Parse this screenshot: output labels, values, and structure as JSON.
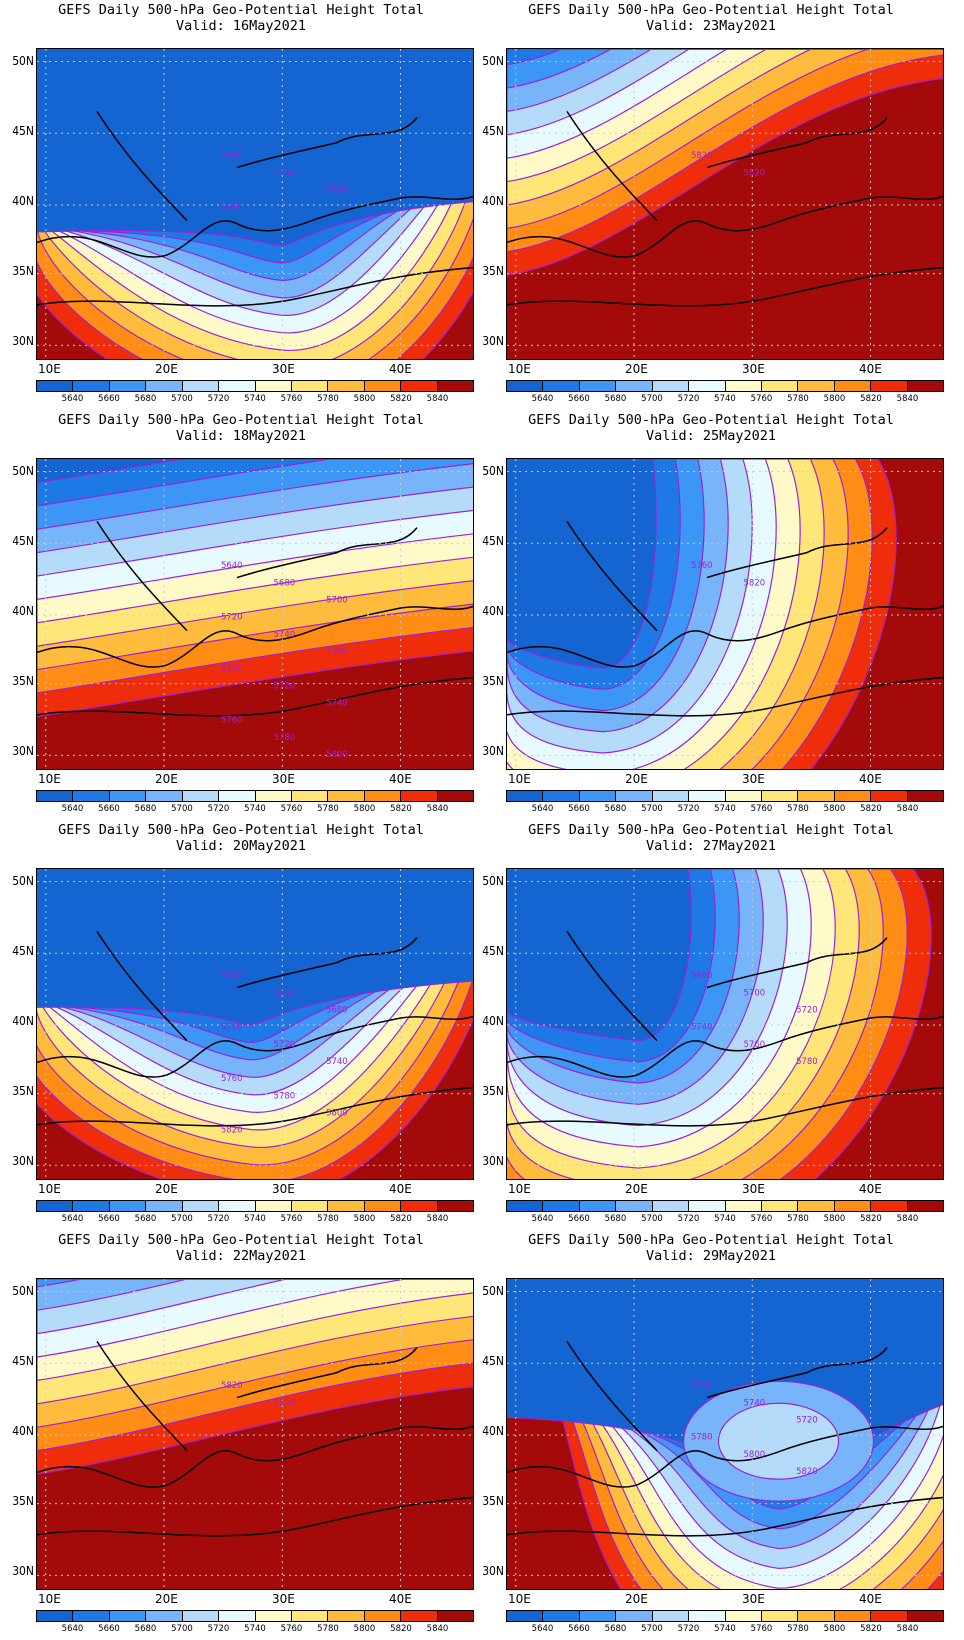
{
  "title_prefix": "GEFS Daily 500-hPa Geo-Potential Height Total",
  "legend": {
    "levels": [
      "5640",
      "5660",
      "5680",
      "5700",
      "5720",
      "5740",
      "5760",
      "5780",
      "5800",
      "5820",
      "5840"
    ],
    "colors": [
      "#1464d2",
      "#1e78e6",
      "#3c96f5",
      "#78b4fa",
      "#b4dcfa",
      "#e6faff",
      "#fffac8",
      "#ffe678",
      "#ffbc3c",
      "#ff8c14",
      "#f02d0a",
      "#a50a0a"
    ]
  },
  "axis": {
    "y_ticks": [
      "50N",
      "45N",
      "40N",
      "35N",
      "30N"
    ],
    "x_ticks": [
      "10E",
      "20E",
      "30E",
      "40E"
    ]
  },
  "panels": [
    {
      "valid": "Valid: 16May2021",
      "label_chart": [
        "5660",
        "5760",
        "5780",
        "5800"
      ]
    },
    {
      "valid": "Valid: 23May2021",
      "label_chart": [
        "5820",
        "5820"
      ]
    },
    {
      "valid": "Valid: 18May2021",
      "label_chart": [
        "5640",
        "5680",
        "5700",
        "5720",
        "5740",
        "5760",
        "5780",
        "5720",
        "5740",
        "5760",
        "5780",
        "5800"
      ]
    },
    {
      "valid": "Valid: 25May2021",
      "label_chart": [
        "5760",
        "5820"
      ]
    },
    {
      "valid": "Valid: 20May2021",
      "label_chart": [
        "5640",
        "5660",
        "5680",
        "5700",
        "5720",
        "5740",
        "5760",
        "5780",
        "5800",
        "5820"
      ]
    },
    {
      "valid": "Valid: 27May2021",
      "label_chart": [
        "5680",
        "5700",
        "5720",
        "5740",
        "5760",
        "5780"
      ]
    },
    {
      "valid": "Valid: 22May2021",
      "label_chart": [
        "5820",
        "5820"
      ]
    },
    {
      "valid": "Valid: 29May2021",
      "label_chart": [
        "5760",
        "5740",
        "5720",
        "5780",
        "5800",
        "5820"
      ]
    }
  ]
}
